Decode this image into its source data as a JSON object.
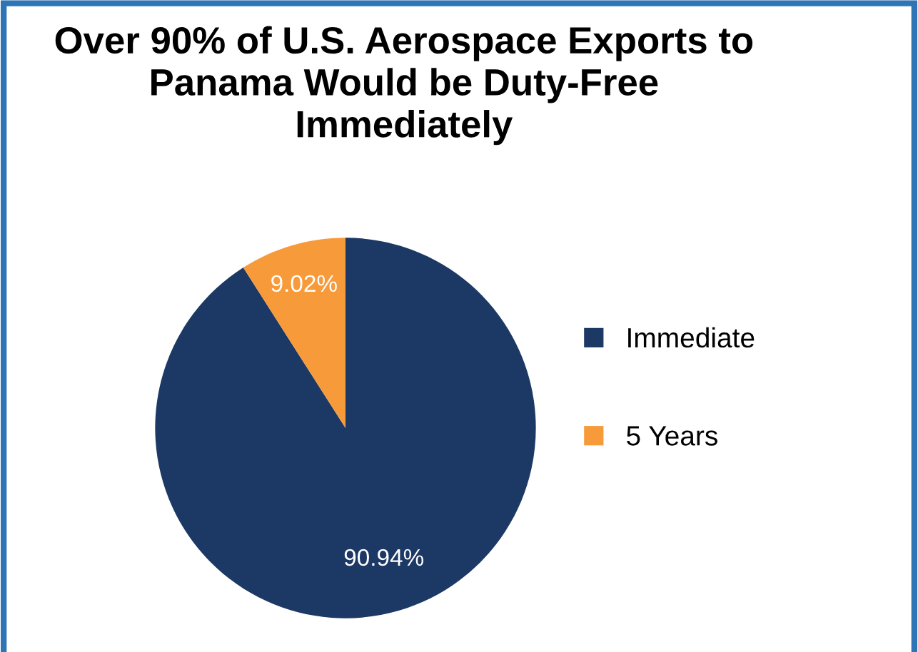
{
  "chart_data": {
    "type": "pie",
    "title": "Over 90% of U.S. Aerospace Exports to\nPanama Would be Duty-Free\nImmediately",
    "categories": [
      "Immediate",
      "5 Years"
    ],
    "values": [
      90.94,
      9.02
    ],
    "colors": [
      "#1c3864",
      "#f79a3a"
    ],
    "value_labels": [
      "90.94%",
      "9.02%"
    ],
    "legend": "right"
  }
}
